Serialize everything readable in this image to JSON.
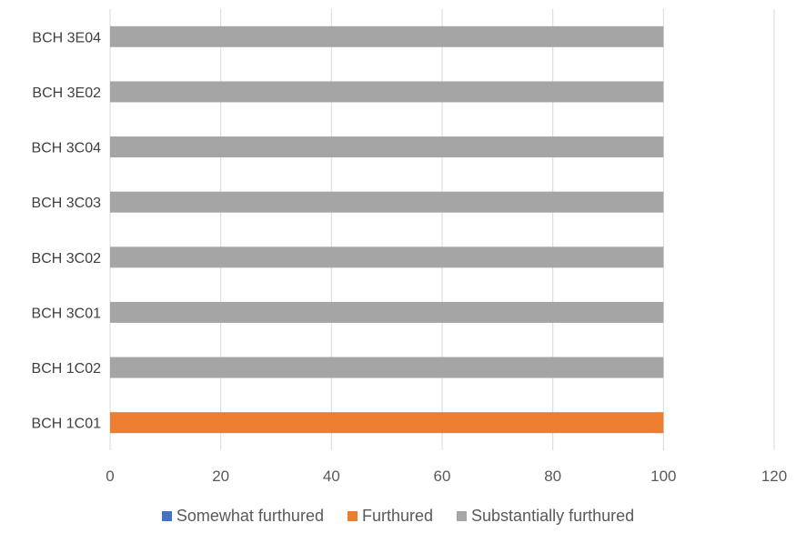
{
  "chart_data": {
    "type": "bar",
    "orientation": "horizontal",
    "stacked": true,
    "categories": [
      "BCH 1C01",
      "BCH 1C02",
      "BCH 3C01",
      "BCH 3C02",
      "BCH 3C03",
      "BCH 3C04",
      "BCH 3E02",
      "BCH 3E04"
    ],
    "series": [
      {
        "name": "Somewhat furthured",
        "color": "#4472C4",
        "values": [
          0,
          0,
          0,
          0,
          0,
          0,
          0,
          0
        ]
      },
      {
        "name": "Furthured",
        "color": "#ED7D31",
        "values": [
          100,
          0,
          0,
          0,
          0,
          0,
          0,
          0
        ]
      },
      {
        "name": "Substantially furthured",
        "color": "#A5A5A5",
        "values": [
          0,
          100,
          100,
          100,
          100,
          100,
          100,
          100
        ]
      }
    ],
    "xlim": [
      0,
      120
    ],
    "xticks": [
      "0",
      "20",
      "40",
      "60",
      "80",
      "100",
      "120"
    ],
    "grid": true,
    "legend": "bottom"
  }
}
